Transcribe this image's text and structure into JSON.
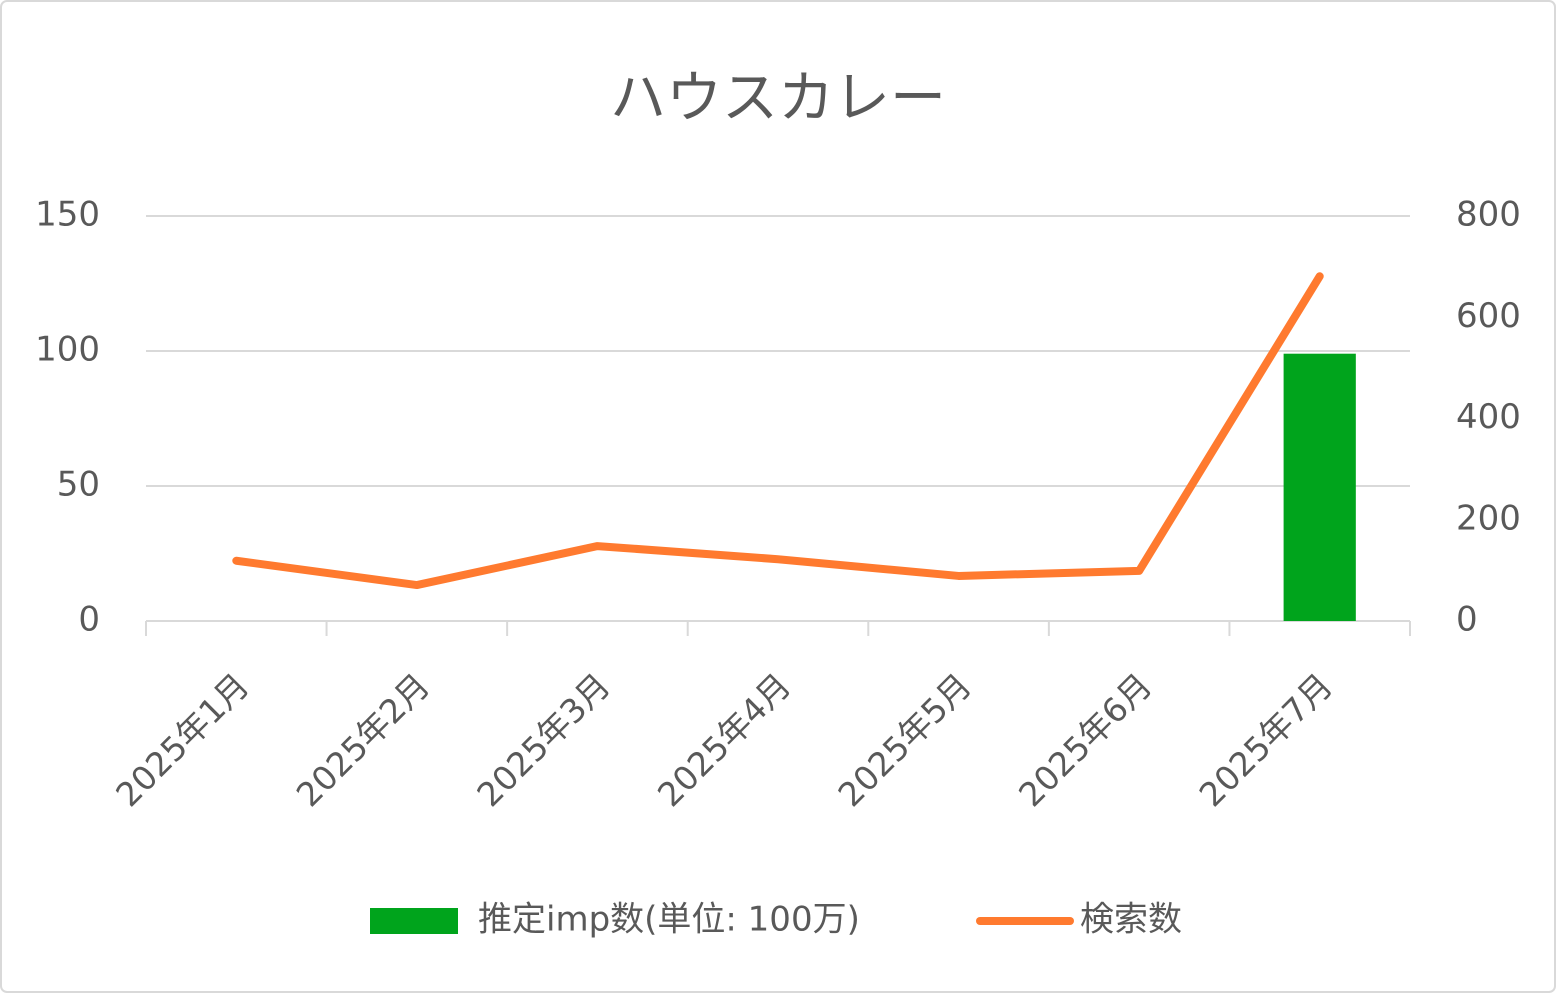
{
  "chart_data": {
    "type": "bar",
    "title": "ハウスカレー",
    "categories": [
      "2025年1月",
      "2025年2月",
      "2025年3月",
      "2025年4月",
      "2025年5月",
      "2025年6月",
      "2025年7月"
    ],
    "series": [
      {
        "name": "推定imp数(単位: 100万)",
        "type": "bar",
        "color": "#00a41c",
        "values": [
          0,
          0,
          0,
          0,
          0,
          0,
          99
        ]
      },
      {
        "name": "検索数",
        "type": "line",
        "axis": "y2",
        "color": "#ff7a2f",
        "values": [
          119,
          71,
          148,
          122,
          89,
          99,
          681
        ]
      }
    ],
    "ylim": [
      0,
      150
    ],
    "yticks": [
      0,
      50,
      100,
      150
    ],
    "y2lim": [
      0,
      800
    ],
    "y2ticks": [
      0,
      200,
      400,
      600,
      800
    ],
    "grid": true,
    "legend": "bottom"
  }
}
